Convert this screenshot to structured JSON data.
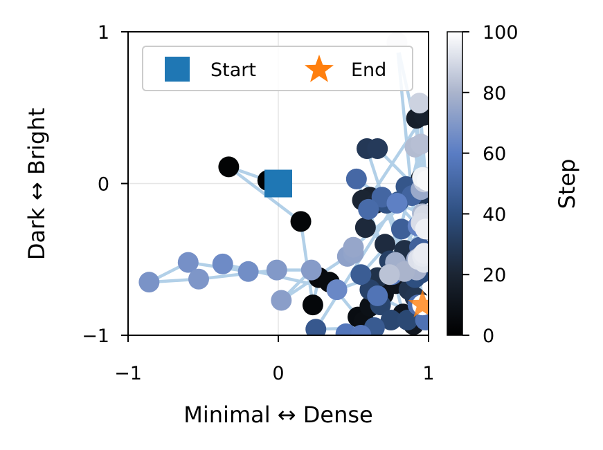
{
  "chart_data": {
    "type": "scatter",
    "xlabel": "Minimal ↔ Dense",
    "ylabel": "Dark ↔ Bright",
    "xlim": [
      -1,
      1
    ],
    "ylim": [
      -1,
      1
    ],
    "xticks": [
      "−1",
      "0",
      "1"
    ],
    "yticks": [
      "−1",
      "0",
      "1"
    ],
    "grid": true,
    "legend": {
      "placement": "top",
      "entries": [
        {
          "label": "Start",
          "marker": "square",
          "color": "#1f77b4"
        },
        {
          "label": "End",
          "marker": "star",
          "color": "#ff7f0e"
        }
      ]
    },
    "colorbar": {
      "label": "Step",
      "range": [
        0,
        100
      ],
      "ticks": [
        "0",
        "20",
        "40",
        "60",
        "80",
        "100"
      ],
      "colormap": "bone-blue"
    },
    "trajectory_color": "#7fb0d8",
    "start": {
      "x": 0.0,
      "y": 0.0
    },
    "end": {
      "x": 0.96,
      "y": -0.8
    },
    "points": [
      {
        "step": 0,
        "x": 0.0,
        "y": 0.0
      },
      {
        "step": 1,
        "x": -0.07,
        "y": 0.02
      },
      {
        "step": 2,
        "x": -0.33,
        "y": 0.11
      },
      {
        "step": 3,
        "x": 0.15,
        "y": -0.25
      },
      {
        "step": 4,
        "x": 0.23,
        "y": -0.8
      },
      {
        "step": 5,
        "x": 0.27,
        "y": -0.62
      },
      {
        "step": 6,
        "x": 0.34,
        "y": -0.65
      },
      {
        "step": 7,
        "x": 0.53,
        "y": -0.88
      },
      {
        "step": 8,
        "x": 0.57,
        "y": -0.91
      },
      {
        "step": 9,
        "x": 0.61,
        "y": -0.81
      },
      {
        "step": 10,
        "x": 0.7,
        "y": -0.73
      },
      {
        "step": 11,
        "x": 0.78,
        "y": -0.66
      },
      {
        "step": 12,
        "x": 0.83,
        "y": -0.86
      },
      {
        "step": 13,
        "x": 0.9,
        "y": -0.93
      },
      {
        "step": 14,
        "x": 0.93,
        "y": -0.77
      },
      {
        "step": 15,
        "x": 0.91,
        "y": -0.6
      },
      {
        "step": 16,
        "x": 0.95,
        "y": 0.03
      },
      {
        "step": 17,
        "x": 0.92,
        "y": 0.43
      },
      {
        "step": 18,
        "x": 0.97,
        "y": 0.45
      },
      {
        "step": 19,
        "x": 0.61,
        "y": -0.09
      },
      {
        "step": 20,
        "x": 0.56,
        "y": -0.11
      },
      {
        "step": 21,
        "x": 0.65,
        "y": -0.13
      },
      {
        "step": 22,
        "x": 0.58,
        "y": -0.29
      },
      {
        "step": 23,
        "x": 0.71,
        "y": -0.4
      },
      {
        "step": 24,
        "x": 0.78,
        "y": -0.54
      },
      {
        "step": 25,
        "x": 0.84,
        "y": -0.44
      },
      {
        "step": 26,
        "x": 0.66,
        "y": -0.62
      },
      {
        "step": 27,
        "x": 0.87,
        "y": -0.7
      },
      {
        "step": 28,
        "x": 0.91,
        "y": -0.75
      },
      {
        "step": 29,
        "x": 0.59,
        "y": 0.23
      },
      {
        "step": 30,
        "x": 0.66,
        "y": 0.23
      },
      {
        "step": 31,
        "x": 0.96,
        "y": -0.07
      },
      {
        "step": 32,
        "x": 0.99,
        "y": -0.3
      },
      {
        "step": 33,
        "x": 0.74,
        "y": -0.51
      },
      {
        "step": 34,
        "x": 0.61,
        "y": -0.7
      },
      {
        "step": 35,
        "x": 0.68,
        "y": -0.8
      },
      {
        "step": 36,
        "x": 0.75,
        "y": -0.9
      },
      {
        "step": 37,
        "x": 0.86,
        "y": -0.9
      },
      {
        "step": 38,
        "x": 0.9,
        "y": -0.55
      },
      {
        "step": 39,
        "x": 0.95,
        "y": -0.59
      },
      {
        "step": 40,
        "x": 0.91,
        "y": -0.62
      },
      {
        "step": 41,
        "x": 0.72,
        "y": -0.13
      },
      {
        "step": 42,
        "x": 0.8,
        "y": -0.12
      },
      {
        "step": 43,
        "x": 0.85,
        "y": -0.02
      },
      {
        "step": 44,
        "x": 0.25,
        "y": -0.96
      },
      {
        "step": 45,
        "x": 0.64,
        "y": -0.95
      },
      {
        "step": 46,
        "x": 0.55,
        "y": -0.6
      },
      {
        "step": 47,
        "x": 0.82,
        "y": -0.3
      },
      {
        "step": 48,
        "x": 0.94,
        "y": -0.42
      },
      {
        "step": 49,
        "x": 0.89,
        "y": -0.08
      },
      {
        "step": 50,
        "x": 0.69,
        "y": -0.09
      },
      {
        "step": 51,
        "x": 0.52,
        "y": 0.03
      },
      {
        "step": 52,
        "x": 0.6,
        "y": -0.17
      },
      {
        "step": 53,
        "x": 0.76,
        "y": -0.6
      },
      {
        "step": 54,
        "x": 0.93,
        "y": -0.8
      },
      {
        "step": 55,
        "x": 0.98,
        "y": -0.9
      },
      {
        "step": 56,
        "x": 0.66,
        "y": -0.74
      },
      {
        "step": 57,
        "x": 0.45,
        "y": -0.99
      },
      {
        "step": 58,
        "x": 0.55,
        "y": -1.0
      },
      {
        "step": 59,
        "x": 0.75,
        "y": -0.6
      },
      {
        "step": 60,
        "x": 0.96,
        "y": -0.2
      },
      {
        "step": 61,
        "x": 0.79,
        "y": -0.13
      },
      {
        "step": 62,
        "x": 0.93,
        "y": -0.28
      },
      {
        "step": 63,
        "x": 0.97,
        "y": -0.5
      },
      {
        "step": 64,
        "x": 0.39,
        "y": -0.7
      },
      {
        "step": 65,
        "x": -0.37,
        "y": -0.53
      },
      {
        "step": 66,
        "x": -0.2,
        "y": -0.58
      },
      {
        "step": 67,
        "x": -0.6,
        "y": -0.52
      },
      {
        "step": 68,
        "x": -0.86,
        "y": -0.65
      },
      {
        "step": 69,
        "x": -0.53,
        "y": -0.63
      },
      {
        "step": 70,
        "x": -0.01,
        "y": -0.57
      },
      {
        "step": 71,
        "x": 0.22,
        "y": -0.57
      },
      {
        "step": 72,
        "x": 0.02,
        "y": -0.77
      },
      {
        "step": 73,
        "x": 0.46,
        "y": -0.48
      },
      {
        "step": 74,
        "x": 0.5,
        "y": -0.46
      },
      {
        "step": 75,
        "x": 0.5,
        "y": -0.42
      },
      {
        "step": 76,
        "x": 0.95,
        "y": -0.04
      },
      {
        "step": 77,
        "x": 0.92,
        "y": -0.5
      },
      {
        "step": 78,
        "x": 0.78,
        "y": -0.52
      },
      {
        "step": 79,
        "x": 0.92,
        "y": -0.57
      },
      {
        "step": 80,
        "x": 0.84,
        "y": -0.58
      },
      {
        "step": 81,
        "x": 0.96,
        "y": -0.2
      },
      {
        "step": 82,
        "x": 0.91,
        "y": 0.24
      },
      {
        "step": 83,
        "x": 0.95,
        "y": 0.26
      },
      {
        "step": 84,
        "x": 0.74,
        "y": -0.6
      },
      {
        "step": 85,
        "x": 0.98,
        "y": -0.5
      },
      {
        "step": 86,
        "x": 0.95,
        "y": -0.48
      },
      {
        "step": 87,
        "x": 0.97,
        "y": 0.01
      },
      {
        "step": 88,
        "x": 0.94,
        "y": 0.53
      },
      {
        "step": 89,
        "x": 0.98,
        "y": 0.04
      },
      {
        "step": 90,
        "x": 0.97,
        "y": -0.21
      },
      {
        "step": 91,
        "x": 0.95,
        "y": -0.26
      },
      {
        "step": 92,
        "x": 0.93,
        "y": -0.5
      },
      {
        "step": 93,
        "x": 0.97,
        "y": -0.52
      },
      {
        "step": 94,
        "x": 0.96,
        "y": -0.48
      },
      {
        "step": 95,
        "x": 0.97,
        "y": -0.46
      },
      {
        "step": 96,
        "x": 0.98,
        "y": -0.3
      },
      {
        "step": 97,
        "x": 0.96,
        "y": 0.04
      },
      {
        "step": 98,
        "x": 0.99,
        "y": 0.02
      },
      {
        "step": 99,
        "x": 0.79,
        "y": 0.93
      },
      {
        "step": 100,
        "x": 0.96,
        "y": -0.8
      }
    ]
  }
}
